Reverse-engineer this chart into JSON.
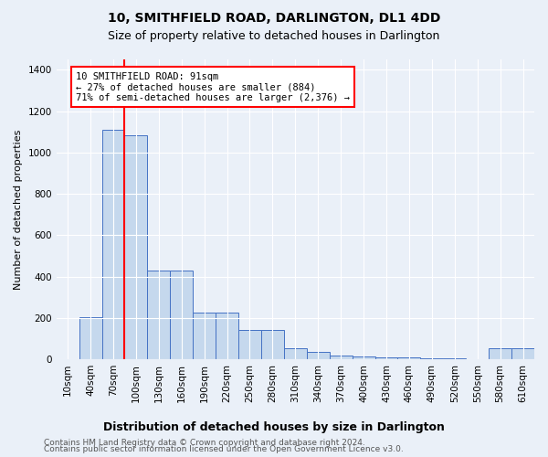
{
  "title": "10, SMITHFIELD ROAD, DARLINGTON, DL1 4DD",
  "subtitle": "Size of property relative to detached houses in Darlington",
  "xlabel": "Distribution of detached houses by size in Darlington",
  "ylabel": "Number of detached properties",
  "categories": [
    "10sqm",
    "40sqm",
    "70sqm",
    "100sqm",
    "130sqm",
    "160sqm",
    "190sqm",
    "220sqm",
    "250sqm",
    "280sqm",
    "310sqm",
    "340sqm",
    "370sqm",
    "400sqm",
    "430sqm",
    "460sqm",
    "490sqm",
    "520sqm",
    "550sqm",
    "580sqm",
    "610sqm"
  ],
  "values": [
    0,
    205,
    1110,
    1085,
    430,
    430,
    225,
    225,
    140,
    140,
    55,
    35,
    20,
    15,
    10,
    10,
    5,
    5,
    0,
    55,
    55
  ],
  "bar_color": "#c5d8ed",
  "bar_edge_color": "#4472c4",
  "annotation_text": "10 SMITHFIELD ROAD: 91sqm\n← 27% of detached houses are smaller (884)\n71% of semi-detached houses are larger (2,376) →",
  "vline_x": 3,
  "ylim": [
    0,
    1450
  ],
  "yticks": [
    0,
    200,
    400,
    600,
    800,
    1000,
    1200,
    1400
  ],
  "footer1": "Contains HM Land Registry data © Crown copyright and database right 2024.",
  "footer2": "Contains public sector information licensed under the Open Government Licence v3.0.",
  "bg_color": "#eaf0f8",
  "plot_bg_color": "#eaf0f8",
  "grid_color": "#ffffff",
  "title_fontsize": 10,
  "subtitle_fontsize": 9,
  "ylabel_fontsize": 8,
  "xlabel_fontsize": 9,
  "tick_fontsize": 7.5,
  "annotation_fontsize": 7.5,
  "footer_fontsize": 6.5
}
